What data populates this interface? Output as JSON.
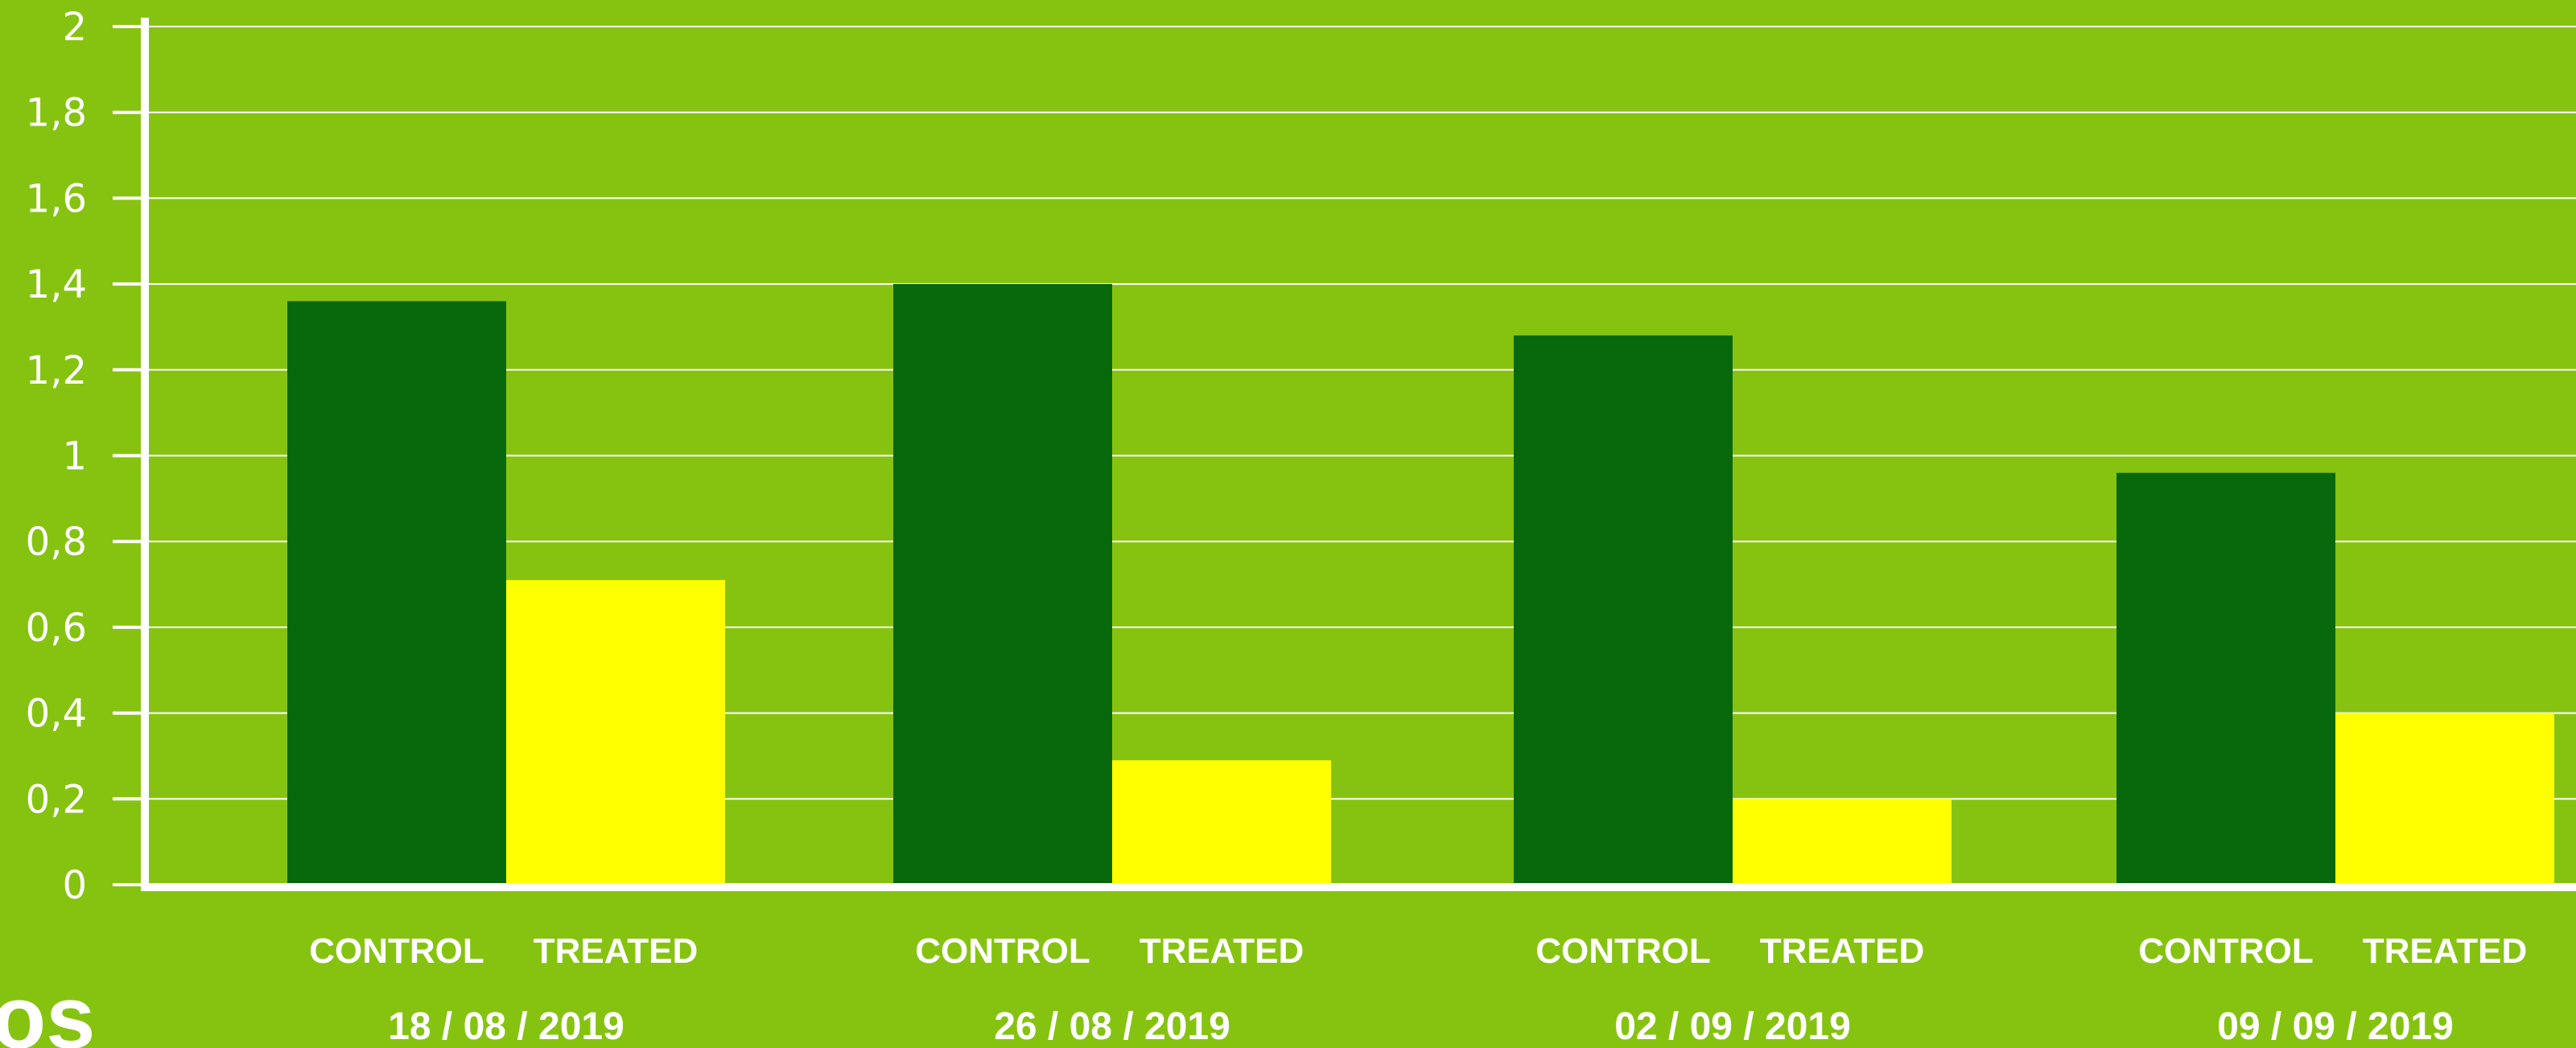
{
  "chart_data": {
    "type": "bar",
    "categories": [
      "18 / 08 / 2019",
      "26 / 08 / 2019",
      "02 / 09 / 2019",
      "09 / 09 / 2019"
    ],
    "series": [
      {
        "name": "CONTROL",
        "values": [
          1.36,
          1.4,
          1.28,
          0.96
        ],
        "color": "#08680c"
      },
      {
        "name": "TREATED",
        "values": [
          0.71,
          0.29,
          0.2,
          0.4
        ],
        "color": "#ffff00"
      }
    ],
    "title": "",
    "xlabel": "",
    "ylabel": "",
    "ylim": [
      0,
      2
    ],
    "yticks": [
      0,
      0.2,
      0.4,
      0.6,
      0.8,
      1,
      1.2,
      1.4,
      1.6,
      1.8,
      2
    ],
    "ytick_labels": [
      "0",
      "0,2",
      "0,4",
      "0,6",
      "0,8",
      "1",
      "1,2",
      "1,4",
      "1,6",
      "1,8",
      "2"
    ],
    "grid": true,
    "background_color": "#86c311",
    "grid_color": "#ffffff",
    "axis_color": "#ffffff"
  },
  "partial_label": "os"
}
